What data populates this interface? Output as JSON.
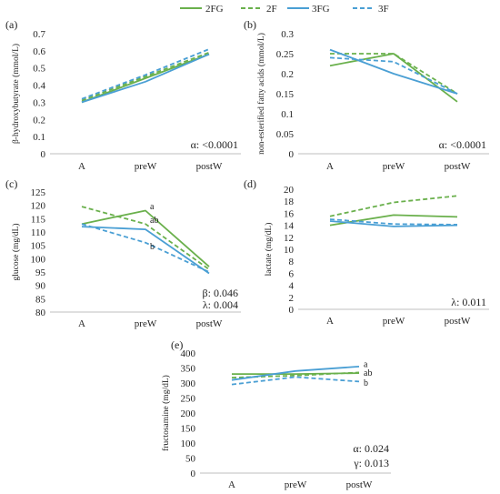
{
  "legend": {
    "items": [
      {
        "name": "2FG",
        "color": "#6ab04c",
        "dash": false
      },
      {
        "name": "2F",
        "color": "#6ab04c",
        "dash": true
      },
      {
        "name": "3FG",
        "color": "#4a9fd4",
        "dash": false
      },
      {
        "name": "3F",
        "color": "#4a9fd4",
        "dash": true
      }
    ]
  },
  "colors": {
    "green": "#6ab04c",
    "blue": "#4a9fd4"
  },
  "chart_data": [
    {
      "type": "line",
      "panel_label": "(a)",
      "ylabel": "β-hydroxybutyrate (mmol/L)",
      "ylim": [
        0,
        0.7
      ],
      "yticks": [
        "0",
        "0.1",
        "0.2",
        "0.3",
        "0.4",
        "0.5",
        "0.6",
        "0.7"
      ],
      "categories": [
        "A",
        "preW",
        "postW"
      ],
      "series": [
        {
          "name": "2FG",
          "values": [
            0.3,
            0.44,
            0.58
          ]
        },
        {
          "name": "2F",
          "values": [
            0.31,
            0.45,
            0.59
          ]
        },
        {
          "name": "3FG",
          "values": [
            0.3,
            0.42,
            0.58
          ]
        },
        {
          "name": "3F",
          "values": [
            0.32,
            0.46,
            0.61
          ]
        }
      ],
      "annotations": [
        "α: <0.0001"
      ],
      "data_labels": []
    },
    {
      "type": "line",
      "panel_label": "(b)",
      "ylabel": "non-esterified fatty acids (mmol/L)",
      "ylim": [
        0,
        0.3
      ],
      "yticks": [
        "0",
        "0.05",
        "0.1",
        "0.15",
        "0.2",
        "0.25",
        "0.3"
      ],
      "categories": [
        "A",
        "preW",
        "postW"
      ],
      "series": [
        {
          "name": "2FG",
          "values": [
            0.22,
            0.25,
            0.13
          ]
        },
        {
          "name": "2F",
          "values": [
            0.25,
            0.25,
            0.15
          ]
        },
        {
          "name": "3FG",
          "values": [
            0.26,
            0.2,
            0.15
          ]
        },
        {
          "name": "3F",
          "values": [
            0.24,
            0.23,
            0.15
          ]
        }
      ],
      "annotations": [
        "α: <0.0001"
      ],
      "data_labels": []
    },
    {
      "type": "line",
      "panel_label": "(c)",
      "ylabel": "glucose (mg/dL)",
      "ylim": [
        80,
        125
      ],
      "yticks": [
        "80",
        "85",
        "90",
        "95",
        "100",
        "105",
        "110",
        "115",
        "120",
        "125"
      ],
      "categories": [
        "A",
        "preW",
        "postW"
      ],
      "series": [
        {
          "name": "2FG",
          "values": [
            113,
            118,
            97
          ]
        },
        {
          "name": "2F",
          "values": [
            119.5,
            113,
            96
          ]
        },
        {
          "name": "3FG",
          "values": [
            112,
            111,
            94.5
          ]
        },
        {
          "name": "3F",
          "values": [
            113,
            106,
            95
          ]
        }
      ],
      "annotations": [
        "β: 0.046",
        "λ: 0.004"
      ],
      "data_labels": [
        {
          "text": "a",
          "x": "preW",
          "y": 119.5
        },
        {
          "text": "ab",
          "x": "preW",
          "y": 114.5
        },
        {
          "text": "b",
          "x": "preW",
          "y": 104.5
        }
      ]
    },
    {
      "type": "line",
      "panel_label": "(d)",
      "ylabel": "lactate (mg/dL)",
      "ylim": [
        0,
        20
      ],
      "yticks": [
        "0",
        "2",
        "4",
        "6",
        "8",
        "10",
        "12",
        "14",
        "16",
        "18",
        "20"
      ],
      "categories": [
        "A",
        "preW",
        "postW"
      ],
      "series": [
        {
          "name": "2FG",
          "values": [
            14.0,
            15.7,
            15.4
          ]
        },
        {
          "name": "2F",
          "values": [
            15.5,
            17.8,
            18.9
          ]
        },
        {
          "name": "3FG",
          "values": [
            14.7,
            13.8,
            14.0
          ]
        },
        {
          "name": "3F",
          "values": [
            15.0,
            14.2,
            14.1
          ]
        }
      ],
      "annotations": [
        "λ: 0.011"
      ],
      "data_labels": []
    },
    {
      "type": "line",
      "panel_label": "(e)",
      "ylabel": "fructosamine (mg/dL)",
      "ylim": [
        0,
        400
      ],
      "yticks": [
        "0",
        "50",
        "100",
        "150",
        "200",
        "250",
        "300",
        "350",
        "400"
      ],
      "categories": [
        "A",
        "preW",
        "postW"
      ],
      "series": [
        {
          "name": "2FG",
          "values": [
            330,
            330,
            333
          ]
        },
        {
          "name": "2F",
          "values": [
            318,
            325,
            335
          ]
        },
        {
          "name": "3FG",
          "values": [
            310,
            340,
            355
          ]
        },
        {
          "name": "3F",
          "values": [
            295,
            320,
            305
          ]
        }
      ],
      "annotations": [
        "α: 0.024",
        "γ: 0.013"
      ],
      "data_labels": [
        {
          "text": "a",
          "x": "postW",
          "y": 362
        },
        {
          "text": "ab",
          "x": "postW",
          "y": 333
        },
        {
          "text": "b",
          "x": "postW",
          "y": 300
        }
      ]
    }
  ]
}
